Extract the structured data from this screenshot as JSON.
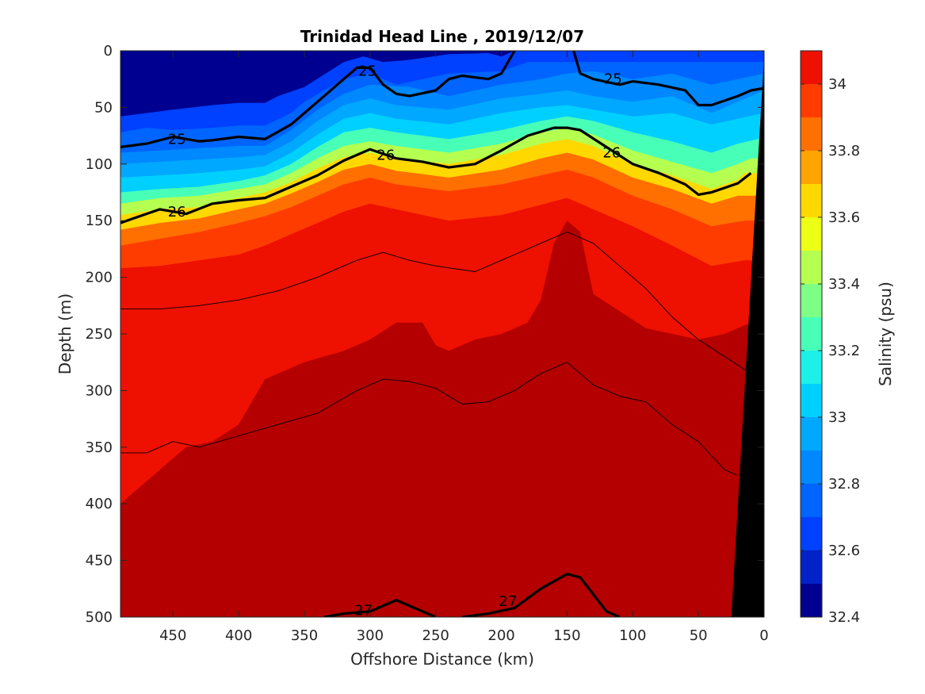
{
  "chart_data": {
    "type": "heatmap",
    "title": "Trinidad Head Line , 2019/12/07",
    "xlabel": "Offshore Distance (km)",
    "ylabel": "Depth (m)",
    "colorbar_label": "Salinity (psu)",
    "xlim": [
      490,
      0
    ],
    "ylim": [
      500,
      0
    ],
    "x_reversed": true,
    "y_reversed": true,
    "x_ticks": [
      450,
      400,
      350,
      300,
      250,
      200,
      150,
      100,
      50,
      0
    ],
    "x_tick_labels": [
      "450",
      "400",
      "350",
      "300",
      "250",
      "200",
      "150",
      "100",
      "50",
      "0"
    ],
    "y_ticks": [
      0,
      50,
      100,
      150,
      200,
      250,
      300,
      350,
      400,
      450,
      500
    ],
    "y_tick_labels": [
      "0",
      "50",
      "100",
      "150",
      "200",
      "250",
      "300",
      "350",
      "400",
      "450",
      "500"
    ],
    "colorbar": {
      "range": [
        32.4,
        34.1
      ],
      "levels": [
        32.4,
        32.5,
        32.6,
        32.7,
        32.8,
        32.9,
        33.0,
        33.1,
        33.2,
        33.3,
        33.4,
        33.5,
        33.6,
        33.7,
        33.8,
        33.9,
        34.0,
        34.1
      ],
      "colors": [
        "#000090",
        "#0022c8",
        "#0040ff",
        "#0064ff",
        "#0088ff",
        "#00a8ff",
        "#00d0ff",
        "#1cf0e8",
        "#48ffb8",
        "#7cff84",
        "#b4ff50",
        "#ecff14",
        "#ffd800",
        "#ffa400",
        "#ff7000",
        "#ff3c00",
        "#ee1000",
        "#b40000",
        "#800000"
      ],
      "ticks": [
        32.4,
        32.6,
        32.8,
        33.0,
        33.2,
        33.4,
        33.6,
        33.8,
        34.0
      ],
      "tick_labels": [
        "32.4",
        "32.6",
        "32.8",
        "33",
        "33.2",
        "33.4",
        "33.6",
        "33.8",
        "34"
      ]
    },
    "salinity_isohalines": [
      {
        "salinity": 32.55,
        "depth_x": [
          490,
          450,
          420,
          400,
          380,
          370,
          350,
          320,
          305,
          290,
          270,
          240,
          210,
          200,
          190
        ],
        "depth": [
          58,
          52,
          48,
          46,
          46,
          40,
          32,
          10,
          5,
          10,
          8,
          3,
          2,
          5,
          0
        ]
      },
      {
        "salinity": 32.65,
        "depth_x": [
          490,
          470,
          450,
          420,
          400,
          380,
          360,
          350,
          320,
          300,
          280,
          240,
          200,
          180
        ],
        "depth": [
          72,
          68,
          70,
          68,
          66,
          66,
          55,
          45,
          25,
          20,
          30,
          20,
          18,
          10,
          0
        ]
      },
      {
        "salinity": 32.75,
        "depth_x": [
          490,
          460,
          430,
          400,
          380,
          360,
          340,
          320,
          300,
          270,
          240,
          200,
          170,
          150,
          130,
          100,
          70,
          40,
          20,
          0
        ],
        "depth": [
          90,
          88,
          86,
          84,
          84,
          70,
          52,
          38,
          30,
          32,
          40,
          30,
          25,
          20,
          18,
          25,
          20,
          30,
          25,
          20
        ]
      },
      {
        "salinity": 32.85,
        "depth_x": [
          490,
          460,
          430,
          400,
          380,
          360,
          340,
          320,
          300,
          280,
          240,
          200,
          170,
          150,
          130,
          100,
          70,
          40,
          20,
          0
        ],
        "depth": [
          100,
          98,
          96,
          94,
          92,
          80,
          62,
          48,
          42,
          48,
          52,
          42,
          38,
          35,
          40,
          45,
          40,
          55,
          45,
          35
        ]
      },
      {
        "salinity": 32.95,
        "depth_x": [
          490,
          460,
          430,
          400,
          380,
          360,
          340,
          320,
          300,
          280,
          240,
          200,
          170,
          150,
          130,
          100,
          70,
          40,
          20,
          0
        ],
        "depth": [
          112,
          110,
          108,
          105,
          102,
          90,
          74,
          60,
          55,
          60,
          65,
          55,
          50,
          48,
          52,
          58,
          55,
          65,
          60,
          55
        ]
      },
      {
        "salinity": 33.1,
        "depth_x": [
          490,
          460,
          430,
          400,
          380,
          360,
          340,
          320,
          300,
          280,
          240,
          200,
          170,
          150,
          130,
          100,
          70,
          40,
          20,
          5
        ],
        "depth": [
          125,
          122,
          120,
          115,
          110,
          100,
          85,
          72,
          68,
          72,
          78,
          70,
          62,
          58,
          62,
          72,
          80,
          90,
          82,
          78
        ]
      },
      {
        "salinity": 33.3,
        "depth_x": [
          490,
          460,
          430,
          400,
          380,
          360,
          340,
          320,
          300,
          280,
          240,
          200,
          170,
          150,
          130,
          100,
          70,
          40,
          20,
          10
        ],
        "depth": [
          135,
          130,
          128,
          122,
          118,
          108,
          95,
          84,
          80,
          84,
          90,
          82,
          72,
          68,
          74,
          88,
          98,
          108,
          100,
          95
        ]
      },
      {
        "salinity": 33.5,
        "depth_x": [
          490,
          460,
          430,
          400,
          380,
          360,
          340,
          320,
          300,
          280,
          240,
          200,
          170,
          150,
          130,
          100,
          70,
          40,
          20,
          15
        ],
        "depth": [
          145,
          140,
          138,
          130,
          125,
          116,
          104,
          94,
          90,
          95,
          100,
          92,
          82,
          78,
          84,
          100,
          110,
          122,
          114,
          108
        ]
      },
      {
        "salinity": 33.7,
        "depth_x": [
          490,
          460,
          430,
          400,
          380,
          360,
          340,
          320,
          300,
          280,
          240,
          200,
          170,
          150,
          130,
          100,
          70,
          40,
          20
        ],
        "depth": [
          158,
          152,
          148,
          140,
          135,
          126,
          116,
          105,
          100,
          106,
          112,
          105,
          95,
          90,
          96,
          112,
          122,
          135,
          128
        ]
      },
      {
        "salinity": 33.8,
        "depth_x": [
          490,
          460,
          430,
          400,
          380,
          360,
          340,
          320,
          300,
          280,
          240,
          200,
          170,
          150,
          130,
          100,
          70,
          40,
          15
        ],
        "depth": [
          172,
          166,
          160,
          152,
          146,
          138,
          128,
          118,
          112,
          118,
          124,
          118,
          110,
          105,
          112,
          128,
          140,
          155,
          150
        ]
      },
      {
        "salinity": 33.9,
        "depth_x": [
          490,
          460,
          430,
          400,
          380,
          360,
          340,
          320,
          300,
          280,
          240,
          200,
          170,
          150,
          130,
          100,
          70,
          40,
          15
        ],
        "depth": [
          192,
          190,
          185,
          180,
          172,
          162,
          152,
          142,
          135,
          140,
          150,
          145,
          136,
          130,
          140,
          155,
          172,
          190,
          185
        ]
      },
      {
        "salinity": 34.0,
        "depth_x": [
          490,
          470,
          440,
          420,
          400,
          380,
          350,
          320,
          300,
          280,
          260,
          250,
          240,
          220,
          200,
          180,
          170,
          160,
          150,
          140,
          130,
          110,
          90,
          70,
          50,
          30,
          10
        ],
        "depth": [
          400,
          380,
          350,
          345,
          330,
          290,
          275,
          265,
          255,
          240,
          240,
          260,
          265,
          255,
          250,
          240,
          220,
          170,
          150,
          160,
          215,
          230,
          245,
          250,
          255,
          250,
          240
        ]
      },
      {
        "salinity": 34.05,
        "depth_x": [
          490,
          460,
          440,
          420,
          400,
          380,
          360,
          340,
          320,
          300,
          280,
          260,
          240,
          220,
          200,
          180,
          160,
          150,
          140,
          120,
          100,
          80,
          60,
          40,
          25
        ],
        "depth": [
          500,
          495,
          480,
          470,
          460,
          440,
          435,
          435,
          430,
          420,
          430,
          450,
          450,
          445,
          420,
          400,
          385,
          378,
          380,
          400,
          430,
          450,
          470,
          465,
          450
        ]
      }
    ],
    "density_contours": [
      {
        "level": 25,
        "label": "25",
        "bold": true,
        "x": [
          490,
          470,
          450,
          430,
          420,
          400,
          380,
          360,
          340,
          320,
          310,
          300,
          290,
          280,
          270,
          250,
          240,
          230,
          210,
          200,
          190
        ],
        "depth": [
          85,
          82,
          76,
          80,
          79,
          76,
          78,
          65,
          45,
          25,
          15,
          15,
          30,
          38,
          40,
          35,
          25,
          22,
          25,
          20,
          0
        ]
      },
      {
        "level": 25,
        "label": "25",
        "bold": true,
        "x": [
          145,
          140,
          130,
          110,
          100,
          80,
          60,
          50,
          40,
          20,
          10,
          0
        ],
        "depth": [
          0,
          20,
          25,
          30,
          27,
          30,
          35,
          48,
          48,
          40,
          35,
          33
        ]
      },
      {
        "level": 26,
        "label": "26",
        "bold": true,
        "x": [
          490,
          480,
          460,
          440,
          420,
          400,
          380,
          360,
          340,
          320,
          300,
          280,
          260,
          240,
          220,
          200,
          180,
          160,
          150,
          140,
          120,
          100,
          80,
          60,
          50,
          40,
          20,
          10
        ],
        "depth": [
          152,
          148,
          140,
          144,
          135,
          132,
          130,
          120,
          110,
          97,
          87,
          95,
          98,
          103,
          100,
          88,
          75,
          68,
          68,
          70,
          85,
          100,
          108,
          118,
          127,
          125,
          117,
          108
        ]
      },
      {
        "level": 26.5,
        "label": "",
        "bold": false,
        "x": [
          490,
          460,
          430,
          400,
          370,
          340,
          310,
          290,
          270,
          250,
          220,
          200,
          180,
          160,
          150,
          130,
          110,
          90,
          70,
          50,
          30,
          10
        ],
        "depth": [
          228,
          228,
          225,
          220,
          212,
          200,
          185,
          178,
          185,
          190,
          195,
          185,
          175,
          165,
          160,
          170,
          190,
          210,
          235,
          255,
          270,
          285
        ]
      },
      {
        "level": 26.7,
        "label": "",
        "bold": false,
        "x": [
          490,
          470,
          450,
          430,
          400,
          370,
          340,
          310,
          290,
          270,
          250,
          230,
          210,
          190,
          170,
          150,
          130,
          110,
          90,
          70,
          50,
          30,
          20
        ],
        "depth": [
          355,
          355,
          345,
          350,
          340,
          330,
          320,
          300,
          290,
          292,
          298,
          312,
          310,
          300,
          285,
          275,
          295,
          305,
          310,
          330,
          345,
          370,
          375
        ]
      },
      {
        "level": 27,
        "label": "27",
        "bold": true,
        "x": [
          335,
          320,
          300,
          280,
          260,
          250
        ],
        "depth": [
          500,
          497,
          495,
          485,
          495,
          500
        ]
      },
      {
        "level": 27,
        "label": "27",
        "bold": true,
        "x": [
          230,
          210,
          190,
          170,
          150,
          140,
          130,
          120,
          110
        ],
        "depth": [
          500,
          497,
          492,
          475,
          462,
          465,
          480,
          495,
          500
        ]
      }
    ],
    "density_labels": [
      {
        "text": "25",
        "x": 447,
        "depth": 78
      },
      {
        "text": "25",
        "x": 302,
        "depth": 18
      },
      {
        "text": "25",
        "x": 115,
        "depth": 25
      },
      {
        "text": "26",
        "x": 447,
        "depth": 142
      },
      {
        "text": "26",
        "x": 288,
        "depth": 92
      },
      {
        "text": "26",
        "x": 116,
        "depth": 90
      },
      {
        "text": "27",
        "x": 305,
        "depth": 494
      },
      {
        "text": "27",
        "x": 195,
        "depth": 486
      }
    ],
    "bottom_mask": {
      "x": [
        0,
        25,
        0
      ],
      "depth": [
        5,
        500,
        500
      ],
      "color": "#000000"
    },
    "grid": false
  }
}
